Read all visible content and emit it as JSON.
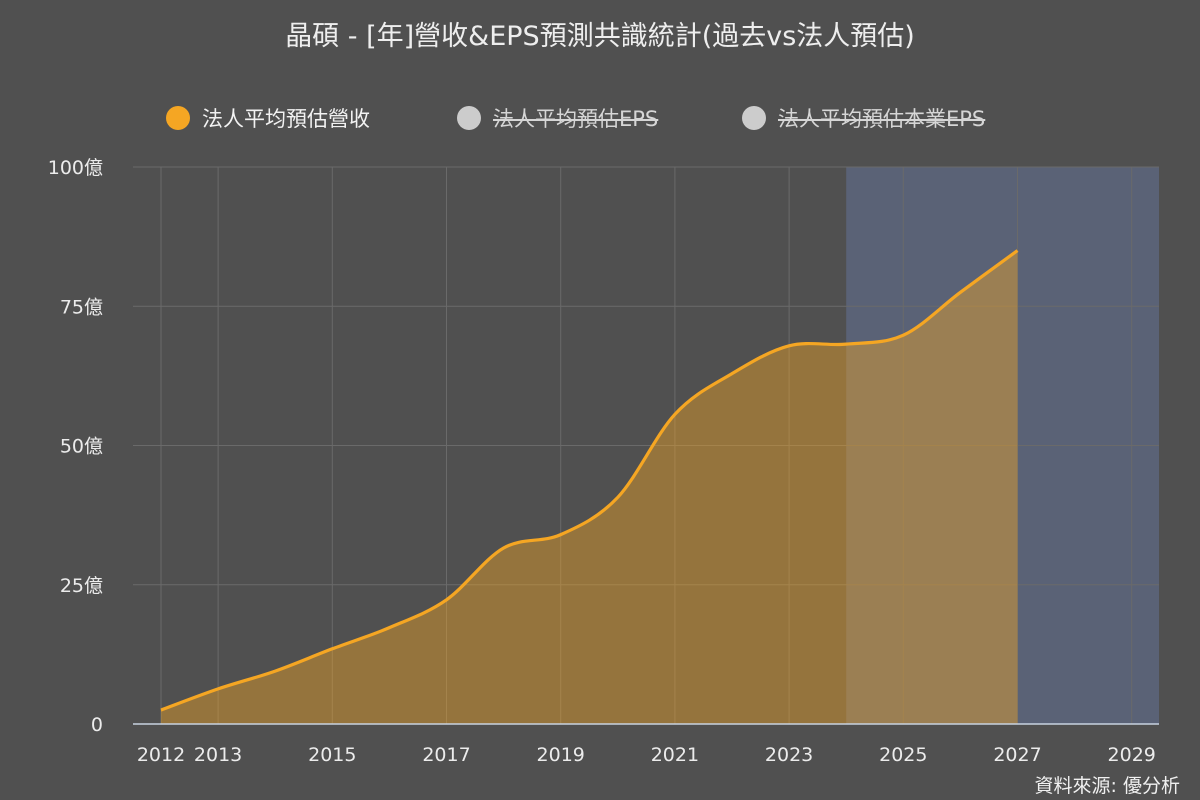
{
  "colors": {
    "background": "#505050",
    "revenue": "#f5a623",
    "hidden_series": "#cccccc",
    "forecast_band": "#5a6276",
    "grid": "#6a6a6a"
  },
  "legend": [
    {
      "label": "法人平均預估營收",
      "state": "active",
      "color": "#f5a623"
    },
    {
      "label": "法人平均預估EPS",
      "state": "hidden",
      "color": "#cccccc"
    },
    {
      "label": "法人平均預估本業EPS",
      "state": "hidden",
      "color": "#cccccc"
    }
  ],
  "source": "資料來源: 優分析",
  "chart_data": {
    "type": "area",
    "title": "晶碩 - [年]營收&EPS預測共識統計(過去vs法人預估)",
    "xlabel": "",
    "ylabel": "",
    "xlim": [
      2012,
      2029.25
    ],
    "ylim": [
      0,
      100
    ],
    "x_tick_labels": [
      "2012",
      "2013",
      "2015",
      "2017",
      "2019",
      "2021",
      "2023",
      "2025",
      "2027",
      "2029"
    ],
    "x_ticks": [
      2012,
      2013,
      2015,
      2017,
      2019,
      2021,
      2023,
      2025,
      2027,
      2029
    ],
    "y_tick_labels": [
      "0",
      "25億",
      "50億",
      "75億",
      "100億"
    ],
    "y_ticks": [
      0,
      25,
      50,
      75,
      100
    ],
    "forecast_region_start": 2024,
    "grid": true,
    "legend_position": "top",
    "series": [
      {
        "name": "法人平均預估營收",
        "unit": "億",
        "x": [
          2012,
          2013,
          2014,
          2015,
          2016,
          2017,
          2018,
          2019,
          2020,
          2021,
          2022,
          2023,
          2024,
          2025,
          2026,
          2027
        ],
        "values": [
          2.5,
          6.3,
          9.5,
          13.5,
          17.3,
          22.3,
          31.6,
          34.0,
          40.7,
          55.6,
          62.9,
          67.9,
          68.2,
          69.8,
          77.5,
          85.0
        ]
      }
    ]
  }
}
